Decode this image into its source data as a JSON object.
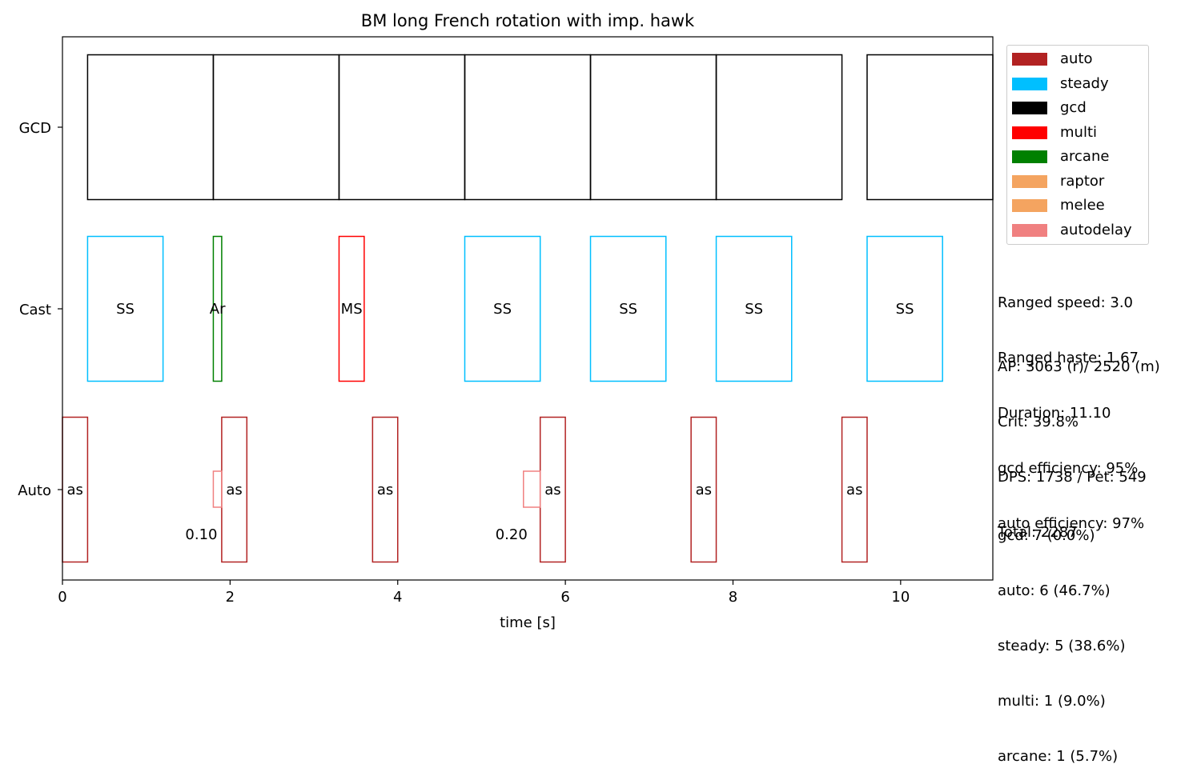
{
  "chart_data": {
    "type": "bar",
    "title": "BM long French rotation with imp. hawk",
    "xlabel": "time [s]",
    "ylabel": "",
    "xlim": [
      0,
      11.1
    ],
    "xticks": [
      0,
      2,
      4,
      6,
      8,
      10
    ],
    "rows": [
      "GCD",
      "Cast",
      "Auto"
    ],
    "bars": {
      "GCD": [
        {
          "start": 0.3,
          "end": 1.8,
          "label": "",
          "type": "gcd"
        },
        {
          "start": 1.8,
          "end": 3.3,
          "label": "",
          "type": "gcd"
        },
        {
          "start": 3.3,
          "end": 4.8,
          "label": "",
          "type": "gcd"
        },
        {
          "start": 4.8,
          "end": 6.3,
          "label": "",
          "type": "gcd"
        },
        {
          "start": 6.3,
          "end": 7.8,
          "label": "",
          "type": "gcd"
        },
        {
          "start": 7.8,
          "end": 9.3,
          "label": "",
          "type": "gcd"
        },
        {
          "start": 9.6,
          "end": 11.1,
          "label": "",
          "type": "gcd"
        }
      ],
      "Cast": [
        {
          "start": 0.3,
          "end": 1.2,
          "label": "SS",
          "type": "steady"
        },
        {
          "start": 1.8,
          "end": 1.9,
          "label": "Ar",
          "type": "arcane"
        },
        {
          "start": 3.3,
          "end": 3.6,
          "label": "MS",
          "type": "multi"
        },
        {
          "start": 4.8,
          "end": 5.7,
          "label": "SS",
          "type": "steady"
        },
        {
          "start": 6.3,
          "end": 7.2,
          "label": "SS",
          "type": "steady"
        },
        {
          "start": 7.8,
          "end": 8.7,
          "label": "SS",
          "type": "steady"
        },
        {
          "start": 9.6,
          "end": 10.5,
          "label": "SS",
          "type": "steady"
        }
      ],
      "Auto": [
        {
          "start": 0.0,
          "end": 0.3,
          "label": "as",
          "type": "auto"
        },
        {
          "start": 1.9,
          "end": 2.2,
          "label": "as",
          "type": "auto"
        },
        {
          "start": 3.7,
          "end": 4.0,
          "label": "as",
          "type": "auto"
        },
        {
          "start": 5.7,
          "end": 6.0,
          "label": "as",
          "type": "auto"
        },
        {
          "start": 7.5,
          "end": 7.8,
          "label": "as",
          "type": "auto"
        },
        {
          "start": 9.3,
          "end": 9.6,
          "label": "as",
          "type": "auto"
        }
      ],
      "Autodelay": [
        {
          "start": 1.8,
          "end": 1.9,
          "label": "0.10",
          "type": "autodelay"
        },
        {
          "start": 5.5,
          "end": 5.7,
          "label": "0.20",
          "type": "autodelay"
        }
      ]
    },
    "legend": [
      {
        "name": "auto",
        "color": "#b22222"
      },
      {
        "name": "steady",
        "color": "#00bfff"
      },
      {
        "name": "gcd",
        "color": "#000000"
      },
      {
        "name": "multi",
        "color": "#ff0000"
      },
      {
        "name": "arcane",
        "color": "#008000"
      },
      {
        "name": "raptor",
        "color": "#f4a460"
      },
      {
        "name": "melee",
        "color": "#f4a460"
      },
      {
        "name": "autodelay",
        "color": "#f08080"
      }
    ],
    "legend_position": "top-right, outside plot"
  },
  "stats": {
    "block1": [
      "Ranged speed: 3.0",
      "Ranged haste: 1.67",
      "Duration: 11.10"
    ],
    "block2": [
      "AP: 3063 (r)/ 2520 (m)",
      "Crit: 39.8%",
      "DPS: 1738 / Pet: 549",
      "Total: 2287"
    ],
    "block3": [
      "gcd efficiency: 95%",
      "auto efficiency: 97%"
    ],
    "block4": [
      "gcd: 7 (0.0%)",
      "auto: 6 (46.7%)",
      "steady: 5 (38.6%)",
      "multi: 1 (9.0%)",
      "arcane: 1 (5.7%)"
    ]
  }
}
